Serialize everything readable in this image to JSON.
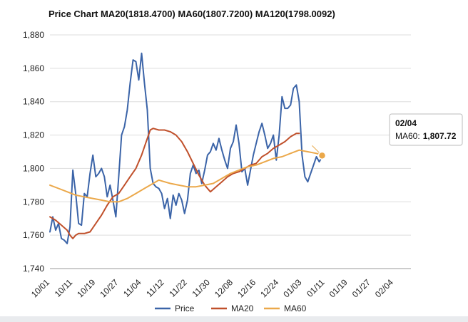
{
  "chart_data": {
    "type": "line",
    "title": "Price Chart MA20(1818.4700) MA60(1807.7200) MA120(1798.0092)",
    "xlabel": "",
    "ylabel": "",
    "ylim": [
      1740,
      1880
    ],
    "yticks": [
      1740,
      1760,
      1780,
      1800,
      1820,
      1840,
      1860,
      1880
    ],
    "ytick_labels": [
      "1,740",
      "1,760",
      "1,780",
      "1,800",
      "1,820",
      "1,840",
      "1,860",
      "1,880"
    ],
    "xlim": [
      0,
      126
    ],
    "xticks": [
      0,
      8,
      16,
      24,
      32,
      40,
      48,
      56,
      64,
      72,
      80,
      88,
      96,
      104,
      112,
      120
    ],
    "xtick_labels": [
      "10/01",
      "10/11",
      "10/19",
      "10/27",
      "11/04",
      "11/12",
      "11/22",
      "11/30",
      "12/08",
      "12/16",
      "12/24",
      "01/03",
      "01/11",
      "01/19",
      "01/27",
      "02/04"
    ],
    "grid": true,
    "legend": "bottom-center",
    "series": [
      {
        "name": "Price",
        "color": "#3b64a8",
        "points": [
          [
            0,
            1762
          ],
          [
            1,
            1771
          ],
          [
            2,
            1763
          ],
          [
            3,
            1767
          ],
          [
            4,
            1758
          ],
          [
            5,
            1757
          ],
          [
            6,
            1755
          ],
          [
            7,
            1765
          ],
          [
            8,
            1799
          ],
          [
            9,
            1785
          ],
          [
            10,
            1767
          ],
          [
            11,
            1766
          ],
          [
            12,
            1785
          ],
          [
            13,
            1783
          ],
          [
            14,
            1797
          ],
          [
            15,
            1808
          ],
          [
            16,
            1795
          ],
          [
            17,
            1797
          ],
          [
            18,
            1800
          ],
          [
            19,
            1795
          ],
          [
            20,
            1783
          ],
          [
            21,
            1790
          ],
          [
            22,
            1781
          ],
          [
            23,
            1771
          ],
          [
            24,
            1795
          ],
          [
            25,
            1820
          ],
          [
            26,
            1825
          ],
          [
            27,
            1835
          ],
          [
            28,
            1851
          ],
          [
            29,
            1865
          ],
          [
            30,
            1864
          ],
          [
            31,
            1853
          ],
          [
            32,
            1869
          ],
          [
            33,
            1851
          ],
          [
            34,
            1835
          ],
          [
            35,
            1800
          ],
          [
            36,
            1791
          ],
          [
            37,
            1789
          ],
          [
            38,
            1788
          ],
          [
            39,
            1785
          ],
          [
            40,
            1776
          ],
          [
            41,
            1782
          ],
          [
            42,
            1770
          ],
          [
            43,
            1784
          ],
          [
            44,
            1778
          ],
          [
            45,
            1785
          ],
          [
            46,
            1781
          ],
          [
            47,
            1773
          ],
          [
            48,
            1781
          ],
          [
            49,
            1797
          ],
          [
            50,
            1802
          ],
          [
            51,
            1797
          ],
          [
            52,
            1799
          ],
          [
            53,
            1791
          ],
          [
            54,
            1799
          ],
          [
            55,
            1808
          ],
          [
            56,
            1810
          ],
          [
            57,
            1815
          ],
          [
            58,
            1811
          ],
          [
            59,
            1818
          ],
          [
            60,
            1811
          ],
          [
            61,
            1805
          ],
          [
            62,
            1800
          ],
          [
            63,
            1812
          ],
          [
            64,
            1816
          ],
          [
            65,
            1826
          ],
          [
            66,
            1815
          ],
          [
            67,
            1798
          ],
          [
            68,
            1800
          ],
          [
            69,
            1790
          ],
          [
            70,
            1799
          ],
          [
            71,
            1808
          ],
          [
            72,
            1815
          ],
          [
            73,
            1822
          ],
          [
            74,
            1827
          ],
          [
            75,
            1820
          ],
          [
            76,
            1812
          ],
          [
            77,
            1815
          ],
          [
            78,
            1820
          ],
          [
            79,
            1805
          ],
          [
            80,
            1820
          ],
          [
            81,
            1843
          ],
          [
            82,
            1836
          ],
          [
            83,
            1836
          ],
          [
            84,
            1838
          ],
          [
            85,
            1848
          ],
          [
            86,
            1850
          ],
          [
            87,
            1840
          ],
          [
            88,
            1808
          ],
          [
            89,
            1795
          ],
          [
            90,
            1792
          ],
          [
            91,
            1797
          ],
          [
            92,
            1802
          ],
          [
            93,
            1807
          ],
          [
            94,
            1804
          ],
          [
            95,
            1807
          ]
        ]
      },
      {
        "name": "MA20",
        "color": "#c0502b",
        "points": [
          [
            0,
            1771
          ],
          [
            2,
            1769
          ],
          [
            4,
            1766
          ],
          [
            6,
            1763
          ],
          [
            7,
            1760
          ],
          [
            8,
            1758
          ],
          [
            9,
            1760
          ],
          [
            10,
            1761
          ],
          [
            12,
            1761
          ],
          [
            14,
            1762
          ],
          [
            16,
            1767
          ],
          [
            18,
            1772
          ],
          [
            20,
            1778
          ],
          [
            22,
            1783
          ],
          [
            24,
            1785
          ],
          [
            26,
            1790
          ],
          [
            28,
            1795
          ],
          [
            30,
            1800
          ],
          [
            32,
            1808
          ],
          [
            34,
            1818
          ],
          [
            35,
            1823
          ],
          [
            36,
            1824
          ],
          [
            38,
            1823
          ],
          [
            40,
            1823
          ],
          [
            42,
            1822
          ],
          [
            44,
            1820
          ],
          [
            46,
            1816
          ],
          [
            48,
            1810
          ],
          [
            50,
            1803
          ],
          [
            52,
            1796
          ],
          [
            54,
            1790
          ],
          [
            56,
            1786
          ],
          [
            58,
            1789
          ],
          [
            60,
            1792
          ],
          [
            62,
            1795
          ],
          [
            64,
            1797
          ],
          [
            66,
            1798
          ],
          [
            68,
            1800
          ],
          [
            70,
            1802
          ],
          [
            72,
            1803
          ],
          [
            74,
            1807
          ],
          [
            76,
            1809
          ],
          [
            78,
            1812
          ],
          [
            80,
            1814
          ],
          [
            82,
            1816
          ],
          [
            84,
            1819
          ],
          [
            86,
            1821
          ],
          [
            87,
            1821
          ]
        ]
      },
      {
        "name": "MA60",
        "color": "#eba84a",
        "points": [
          [
            0,
            1790
          ],
          [
            3,
            1788
          ],
          [
            6,
            1786
          ],
          [
            9,
            1784
          ],
          [
            12,
            1783
          ],
          [
            15,
            1782
          ],
          [
            18,
            1781
          ],
          [
            21,
            1780
          ],
          [
            24,
            1780
          ],
          [
            27,
            1782
          ],
          [
            30,
            1785
          ],
          [
            33,
            1788
          ],
          [
            36,
            1791
          ],
          [
            38,
            1793
          ],
          [
            40,
            1792
          ],
          [
            42,
            1791
          ],
          [
            45,
            1790
          ],
          [
            48,
            1789
          ],
          [
            51,
            1789
          ],
          [
            54,
            1790
          ],
          [
            57,
            1791
          ],
          [
            60,
            1794
          ],
          [
            63,
            1797
          ],
          [
            66,
            1799
          ],
          [
            69,
            1801
          ],
          [
            72,
            1802
          ],
          [
            75,
            1804
          ],
          [
            78,
            1806
          ],
          [
            81,
            1807
          ],
          [
            84,
            1809
          ],
          [
            87,
            1811
          ],
          [
            90,
            1810
          ],
          [
            93,
            1809
          ],
          [
            95,
            1808
          ]
        ]
      }
    ],
    "tooltip": {
      "date": "02/04",
      "label": "MA60:",
      "value": "1,807.72",
      "x": 95,
      "y": 1807.72
    }
  }
}
